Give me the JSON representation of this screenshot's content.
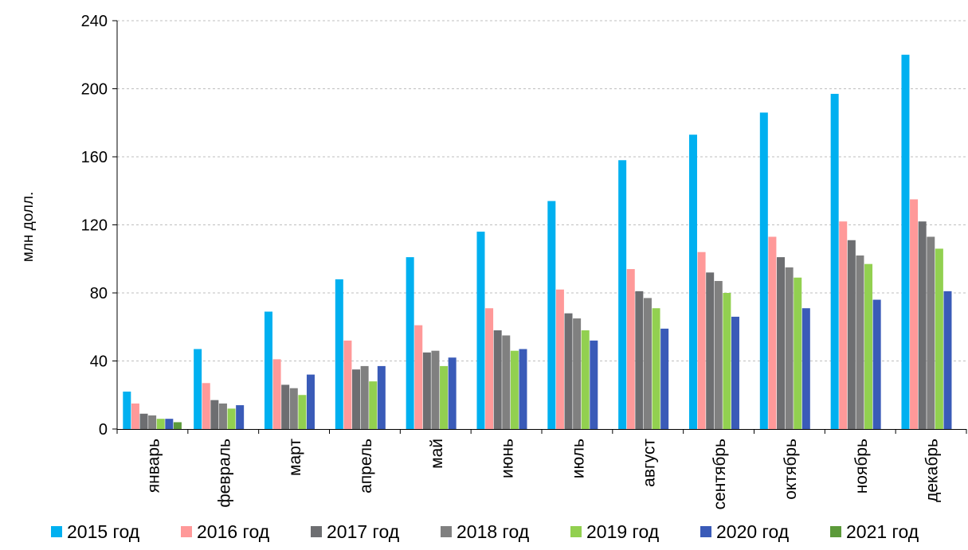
{
  "chart_data": {
    "type": "bar",
    "title": "",
    "xlabel": "",
    "ylabel": "млн долл.",
    "ylim": [
      0,
      240
    ],
    "yticks": [
      "0",
      "40",
      "80",
      "120",
      "160",
      "200",
      "240"
    ],
    "grid": true,
    "legend_position": "bottom",
    "categories": [
      "январь",
      "февраль",
      "март",
      "апрель",
      "май",
      "июнь",
      "июль",
      "август",
      "сентябрь",
      "октябрь",
      "ноябрь",
      "декабрь"
    ],
    "series": [
      {
        "name": "2015 год",
        "color": "#00b0f0",
        "values": [
          22,
          47,
          69,
          88,
          101,
          116,
          134,
          158,
          173,
          186,
          197,
          220
        ]
      },
      {
        "name": "2016 год",
        "color": "#ff9999",
        "values": [
          15,
          27,
          41,
          52,
          61,
          71,
          82,
          94,
          104,
          113,
          122,
          135
        ]
      },
      {
        "name": "2017 год",
        "color": "#6d6e71",
        "values": [
          9,
          17,
          26,
          35,
          45,
          58,
          68,
          81,
          92,
          101,
          111,
          122
        ]
      },
      {
        "name": "2018 год",
        "color": "#808080",
        "values": [
          8,
          15,
          24,
          37,
          46,
          55,
          65,
          77,
          87,
          95,
          102,
          113
        ]
      },
      {
        "name": "2019 год",
        "color": "#92d050",
        "values": [
          6,
          12,
          20,
          28,
          37,
          46,
          58,
          71,
          80,
          89,
          97,
          106
        ]
      },
      {
        "name": "2020 год",
        "color": "#3a5bb8",
        "values": [
          6,
          14,
          32,
          37,
          42,
          47,
          52,
          59,
          66,
          71,
          76,
          81
        ]
      },
      {
        "name": "2021 год",
        "color": "#5c9a3a",
        "values": [
          4,
          null,
          null,
          null,
          null,
          null,
          null,
          null,
          null,
          null,
          null,
          null
        ]
      }
    ]
  }
}
